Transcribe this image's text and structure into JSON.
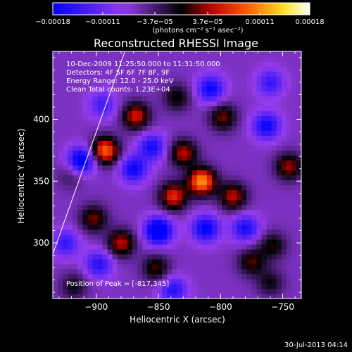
{
  "chart_data": {
    "type": "heatmap",
    "title": "Reconstructed RHESSI Image",
    "xlabel": "Heliocentric X (arcsec)",
    "ylabel": "Heliocentric Y (arcsec)",
    "xlim": [
      -935,
      -735
    ],
    "ylim": [
      255,
      455
    ],
    "xticks": [
      {
        "value": -900,
        "label": "−900"
      },
      {
        "value": -850,
        "label": "−850"
      },
      {
        "value": -800,
        "label": "−800"
      },
      {
        "value": -750,
        "label": "−750"
      }
    ],
    "yticks": [
      {
        "value": 300,
        "label": "300"
      },
      {
        "value": 350,
        "label": "350"
      },
      {
        "value": 400,
        "label": "400"
      }
    ],
    "colorbar": {
      "range": [
        -0.00018,
        0.00018
      ],
      "ticks": [
        {
          "value": -0.00018,
          "label": "−0.00018"
        },
        {
          "value": -0.00011,
          "label": "−0.00011"
        },
        {
          "value": -3.7e-05,
          "label": "−3.7e−05"
        },
        {
          "value": 3.7e-05,
          "label": "3.7e−05"
        },
        {
          "value": 0.00011,
          "label": "0.00011"
        },
        {
          "value": 0.00018,
          "label": "0.00018"
        }
      ],
      "unit": "(photons cm⁻² s⁻¹ asec⁻²)"
    },
    "peak_position": [
      -817,
      345
    ],
    "peaks": [
      {
        "x": -815,
        "y": 350,
        "value": 0.00018
      },
      {
        "x": -893,
        "y": 375,
        "value": 0.00016
      },
      {
        "x": -838,
        "y": 338,
        "value": 0.00013
      },
      {
        "x": -830,
        "y": 373,
        "value": 0.00011
      },
      {
        "x": -868,
        "y": 403,
        "value": 0.00012
      },
      {
        "x": -880,
        "y": 300,
        "value": 0.00011
      },
      {
        "x": -902,
        "y": 320,
        "value": 9e-05
      },
      {
        "x": -790,
        "y": 338,
        "value": 0.00011
      },
      {
        "x": -745,
        "y": 362,
        "value": 0.0001
      },
      {
        "x": -798,
        "y": 402,
        "value": 9e-05
      },
      {
        "x": -852,
        "y": 280,
        "value": 8e-05
      },
      {
        "x": -775,
        "y": 285,
        "value": 8e-05
      },
      {
        "x": -758,
        "y": 298,
        "value": 7e-05
      },
      {
        "x": -760,
        "y": 268,
        "value": 6e-05
      },
      {
        "x": -918,
        "y": 265,
        "value": 6e-05
      },
      {
        "x": -835,
        "y": 418,
        "value": 7e-05
      },
      {
        "x": -920,
        "y": 355,
        "value": 4e-05
      }
    ],
    "troughs": [
      {
        "x": -912,
        "y": 367,
        "value": -0.00014
      },
      {
        "x": -850,
        "y": 310,
        "value": -0.00016
      },
      {
        "x": -812,
        "y": 312,
        "value": -0.00012
      },
      {
        "x": -870,
        "y": 360,
        "value": -0.00011
      },
      {
        "x": -855,
        "y": 378,
        "value": -0.0001
      },
      {
        "x": -808,
        "y": 425,
        "value": -0.00011
      },
      {
        "x": -763,
        "y": 395,
        "value": -0.00011
      },
      {
        "x": -780,
        "y": 312,
        "value": -0.0001
      },
      {
        "x": -898,
        "y": 283,
        "value": -9e-05
      },
      {
        "x": -838,
        "y": 262,
        "value": -9e-05
      },
      {
        "x": -925,
        "y": 300,
        "value": -8e-05
      },
      {
        "x": -760,
        "y": 430,
        "value": -8e-05
      },
      {
        "x": -895,
        "y": 412,
        "value": -7e-05
      }
    ],
    "limb_line": {
      "x1": -935,
      "y1": 291,
      "x2": -877,
      "y2": 455
    }
  },
  "info_lines": [
    "10-Dec-2009 11:25:50.000 to 11:31:50.000",
    "Detectors: 4F 5F 6F 7F 8F, 9F",
    "Energy Range: 12.0 - 25.0 keV",
    "Clean    Total counts: 1.23E+04"
  ],
  "peak_label": "Position of Peak = [-817,345]",
  "date_stamp": "30-Jul-2013 04:14"
}
